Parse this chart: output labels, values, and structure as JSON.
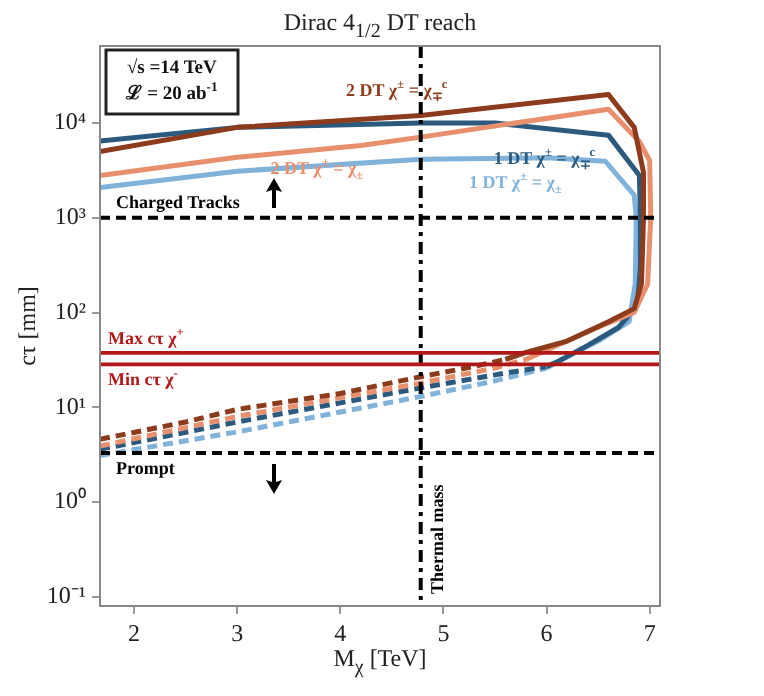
{
  "chart_data": {
    "type": "line",
    "title": "Dirac 4$_{1/2}$ DT reach",
    "xlabel": "M$_{χ}$ [TeV]",
    "ylabel": "cτ [mm]",
    "log": "y",
    "xlim": [
      1.67,
      7.1
    ],
    "ylim": [
      0.08,
      65000
    ],
    "xticks": [
      2,
      3,
      4,
      5,
      6,
      7
    ],
    "yticks": [
      {
        "value": 0.1,
        "label": "10⁻¹"
      },
      {
        "value": 1,
        "label": "10⁰"
      },
      {
        "value": 10,
        "label": "10¹"
      },
      {
        "value": 100,
        "label": "10²"
      },
      {
        "value": 1000,
        "label": "10³"
      },
      {
        "value": 10000,
        "label": "10⁴"
      }
    ],
    "grid": false,
    "legend": false,
    "series": [
      {
        "name": "2 DT χ$^{±}$ = χ$_{∓}$$^{c}$",
        "color": "#8c3b1c",
        "line_style": "solid",
        "x": [
          5.6,
          5.8,
          6.2,
          6.6,
          6.85,
          6.92,
          6.94,
          6.94,
          6.85,
          6.6,
          4.78,
          3,
          1.67
        ],
        "values": [
          32,
          38,
          50,
          80,
          110,
          200,
          1000,
          3000,
          9000,
          20000,
          12000,
          9000,
          5000
        ]
      },
      {
        "name": "2 DT χ$^{±}$ = χ$_{±}$",
        "color": "#e8906e",
        "line_style": "solid",
        "x": [
          5.8,
          6.1,
          6.5,
          6.85,
          6.98,
          7.01,
          7.0,
          6.9,
          6.6,
          4.78,
          4.2,
          3,
          1.67
        ],
        "values": [
          32,
          45,
          70,
          100,
          200,
          1000,
          4000,
          6400,
          14000,
          7100,
          5800,
          4350,
          2800
        ]
      },
      {
        "name": "1 DT χ$^{±}$ = χ$_{∓}$$^{c}$",
        "color": "#2b5a7e",
        "line_style": "solid",
        "x": [
          6.0,
          6.1,
          6.4,
          6.7,
          6.88,
          6.91,
          6.91,
          6.9,
          6.6,
          5.5,
          4.78,
          3,
          1.67
        ],
        "values": [
          27,
          30,
          45,
          70,
          120,
          300,
          1000,
          2800,
          7450,
          10000,
          10000,
          9000,
          6450
        ]
      },
      {
        "name": "1 DT χ$^{±}$ = χ$_{±}$",
        "color": "#80b2da",
        "line_style": "solid",
        "x": [
          6.0,
          6.1,
          6.5,
          6.8,
          6.86,
          6.87,
          6.85,
          6.57,
          6,
          4.78,
          3,
          1.67
        ],
        "values": [
          26,
          30,
          50,
          80,
          200,
          1000,
          1730,
          3950,
          4300,
          4150,
          3100,
          2090
        ]
      },
      {
        "color": "#8c3b1c",
        "line_style": "dashed",
        "x": [
          1.67,
          2.5,
          3,
          4,
          4.78,
          5.3,
          5.6
        ],
        "values": [
          4.6,
          7,
          9.5,
          14,
          21,
          27,
          32
        ]
      },
      {
        "color": "#e8906e",
        "line_style": "dashed",
        "x": [
          1.67,
          3,
          4.78,
          5.5,
          5.8
        ],
        "values": [
          3.9,
          8,
          18,
          26,
          32
        ]
      },
      {
        "color": "#2b5a7e",
        "line_style": "dashed",
        "x": [
          1.67,
          3,
          4.78,
          5.5,
          6.0
        ],
        "values": [
          3.6,
          7,
          16,
          22,
          27
        ]
      },
      {
        "color": "#80b2da",
        "line_style": "dashed",
        "x": [
          1.67,
          3,
          4.78,
          5.5,
          6.0
        ],
        "values": [
          3.1,
          5.5,
          13,
          19,
          26
        ]
      }
    ],
    "ref_lines": [
      {
        "axis": "y",
        "value": 1000,
        "label": "Charged Tracks",
        "color": "#000000",
        "line_style": "dashed"
      },
      {
        "axis": "y",
        "value": 3.3,
        "label": "Prompt",
        "color": "#000000",
        "line_style": "dashed"
      },
      {
        "axis": "x",
        "value": 4.78,
        "label": "Thermal mass",
        "color": "#000000",
        "line_style": "dashdot"
      },
      {
        "axis": "y",
        "value": 37.5,
        "label": "Max cτ χ$^{+}$",
        "color": "#b01818",
        "line_style": "solid"
      },
      {
        "axis": "y",
        "value": 28.4,
        "label": "Min cτ χ$^{-}$",
        "color": "#b01818",
        "line_style": "solid"
      }
    ],
    "annotations": [
      "√s =14 TeV",
      "ℒ = 20 ab$^{-1}$"
    ]
  }
}
